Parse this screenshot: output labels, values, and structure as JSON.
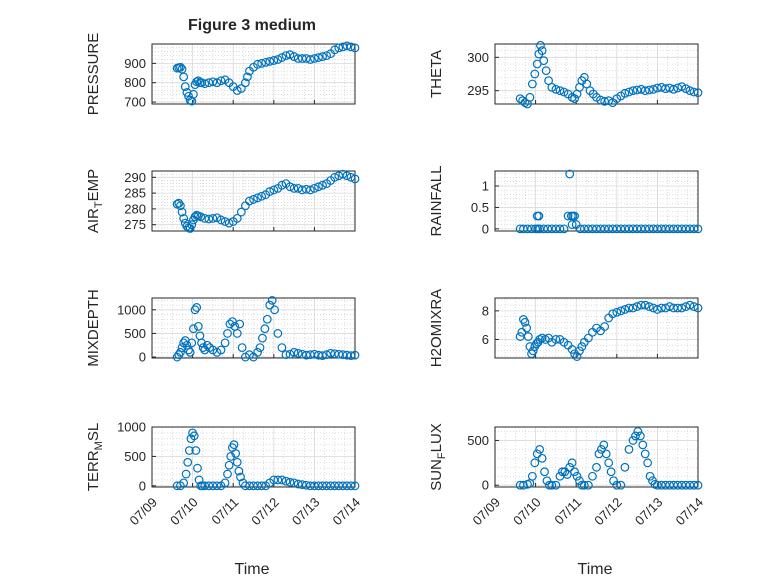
{
  "figure": {
    "title": "Figure 3 medium",
    "xlabel": "Time",
    "x_tick_labels": [
      "07/09",
      "07/10",
      "07/11",
      "07/12",
      "07/13",
      "07/14"
    ],
    "marker_color": "#0072bd"
  },
  "chart_data": [
    {
      "type": "scatter",
      "id": "pressure",
      "ylabel_main": "PRESSURE",
      "ylabel_sub": "",
      "xlim": [
        0,
        5
      ],
      "ylim": [
        690,
        1000
      ],
      "yticks": [
        700,
        800,
        900
      ],
      "ytick_labels": [
        "700",
        "800",
        "900"
      ],
      "grid": true,
      "minor_grid": true,
      "x": [
        0.62,
        0.66,
        0.7,
        0.74,
        0.78,
        0.82,
        0.86,
        0.9,
        0.94,
        0.98,
        1.02,
        1.06,
        1.1,
        1.14,
        1.18,
        1.22,
        1.3,
        1.4,
        1.5,
        1.6,
        1.7,
        1.8,
        1.9,
        2.0,
        2.1,
        2.2,
        2.3,
        2.35,
        2.4,
        2.5,
        2.6,
        2.7,
        2.8,
        2.9,
        3.0,
        3.1,
        3.2,
        3.3,
        3.4,
        3.5,
        3.6,
        3.7,
        3.8,
        3.9,
        4.0,
        4.1,
        4.2,
        4.3,
        4.4,
        4.5,
        4.6,
        4.7,
        4.8,
        4.9,
        5.0
      ],
      "y": [
        875,
        878,
        880,
        870,
        830,
        780,
        750,
        730,
        710,
        705,
        740,
        790,
        805,
        810,
        800,
        800,
        795,
        800,
        805,
        800,
        810,
        815,
        800,
        780,
        760,
        770,
        800,
        830,
        860,
        880,
        895,
        900,
        905,
        910,
        915,
        920,
        930,
        940,
        945,
        935,
        925,
        925,
        925,
        920,
        925,
        930,
        935,
        940,
        950,
        970,
        980,
        985,
        990,
        985,
        980
      ]
    },
    {
      "type": "scatter",
      "id": "theta",
      "ylabel_main": "THETA",
      "ylabel_sub": "",
      "xlim": [
        0,
        5
      ],
      "ylim": [
        293,
        302
      ],
      "yticks": [
        295,
        300
      ],
      "ytick_labels": [
        "295",
        "300"
      ],
      "grid": true,
      "minor_grid": true,
      "x": [
        0.62,
        0.68,
        0.74,
        0.8,
        0.86,
        0.92,
        0.98,
        1.04,
        1.08,
        1.12,
        1.16,
        1.2,
        1.26,
        1.32,
        1.4,
        1.5,
        1.6,
        1.7,
        1.8,
        1.9,
        1.96,
        2.02,
        2.08,
        2.14,
        2.2,
        2.26,
        2.34,
        2.42,
        2.5,
        2.6,
        2.7,
        2.8,
        2.9,
        3.0,
        3.1,
        3.2,
        3.3,
        3.4,
        3.5,
        3.6,
        3.7,
        3.8,
        3.9,
        4.0,
        4.1,
        4.2,
        4.3,
        4.4,
        4.5,
        4.6,
        4.7,
        4.8,
        4.9,
        5.0
      ],
      "y": [
        293.8,
        293.5,
        293.2,
        293.0,
        294.0,
        296.0,
        297.5,
        299.0,
        300.5,
        301.8,
        301.0,
        299.5,
        298.0,
        296.5,
        295.5,
        295.2,
        295.0,
        294.8,
        294.5,
        294.0,
        293.8,
        294.5,
        295.5,
        296.5,
        297.0,
        296.0,
        295.0,
        294.5,
        294.0,
        293.6,
        293.4,
        293.5,
        293.2,
        293.8,
        294.2,
        294.6,
        294.8,
        295.0,
        295.1,
        295.2,
        295.0,
        295.1,
        295.2,
        295.4,
        295.5,
        295.3,
        295.4,
        295.2,
        295.4,
        295.6,
        295.3,
        295.0,
        294.8,
        294.7
      ]
    },
    {
      "type": "scatter",
      "id": "air-temp",
      "ylabel_main": "AIR",
      "ylabel_sub": "T",
      "ylabel_tail": "EMP",
      "xlim": [
        0,
        5
      ],
      "ylim": [
        273,
        292
      ],
      "yticks": [
        275,
        280,
        285,
        290
      ],
      "ytick_labels": [
        "275",
        "280",
        "285",
        "290"
      ],
      "grid": true,
      "minor_grid": true,
      "x": [
        0.62,
        0.66,
        0.7,
        0.74,
        0.78,
        0.82,
        0.86,
        0.9,
        0.94,
        0.98,
        1.02,
        1.06,
        1.1,
        1.14,
        1.2,
        1.3,
        1.4,
        1.5,
        1.6,
        1.7,
        1.8,
        1.9,
        2.0,
        2.1,
        2.2,
        2.3,
        2.4,
        2.5,
        2.6,
        2.7,
        2.8,
        2.9,
        3.0,
        3.1,
        3.2,
        3.3,
        3.4,
        3.5,
        3.6,
        3.7,
        3.8,
        3.9,
        4.0,
        4.1,
        4.2,
        4.3,
        4.4,
        4.5,
        4.6,
        4.7,
        4.8,
        4.9,
        5.0
      ],
      "y": [
        281.5,
        281.8,
        281.0,
        279.0,
        277.0,
        275.5,
        274.5,
        274.0,
        273.8,
        275.0,
        276.5,
        277.5,
        278.0,
        277.8,
        277.5,
        277.0,
        276.8,
        277.0,
        277.2,
        276.5,
        276.0,
        275.5,
        276.0,
        277.0,
        279.0,
        281.0,
        282.5,
        283.0,
        283.5,
        284.0,
        284.5,
        285.5,
        286.0,
        286.5,
        287.5,
        288.0,
        287.0,
        286.5,
        286.5,
        286.0,
        286.2,
        286.0,
        286.5,
        287.0,
        287.5,
        288.0,
        289.0,
        290.0,
        290.5,
        291.0,
        290.5,
        290.0,
        289.5
      ]
    },
    {
      "type": "scatter",
      "id": "rainfall",
      "ylabel_main": "RAINFALL",
      "ylabel_sub": "",
      "xlim": [
        0,
        5
      ],
      "ylim": [
        -0.05,
        1.35
      ],
      "yticks": [
        0,
        0.5,
        1
      ],
      "ytick_labels": [
        "0",
        "0.5",
        "1"
      ],
      "grid": true,
      "minor_grid": true,
      "x": [
        0.62,
        0.7,
        0.8,
        0.9,
        1.0,
        1.05,
        1.1,
        1.2,
        1.3,
        1.4,
        1.5,
        1.6,
        1.7,
        1.8,
        1.84,
        1.88,
        1.92,
        1.96,
        2.0,
        2.1,
        2.2,
        2.3,
        2.4,
        2.5,
        2.6,
        2.7,
        2.8,
        2.9,
        3.0,
        3.1,
        3.2,
        3.3,
        3.4,
        3.5,
        3.6,
        3.7,
        3.8,
        3.9,
        4.0,
        4.1,
        4.2,
        4.3,
        4.4,
        4.5,
        4.6,
        4.7,
        4.8,
        4.9,
        5.0,
        1.04,
        1.08,
        1.9
      ],
      "y": [
        0,
        0,
        0,
        0,
        0,
        0,
        0,
        0,
        0,
        0,
        0,
        0,
        0,
        0.3,
        1.28,
        0.3,
        0.3,
        0.3,
        0.1,
        0,
        0,
        0,
        0,
        0,
        0,
        0,
        0,
        0,
        0,
        0,
        0,
        0,
        0,
        0,
        0,
        0,
        0,
        0,
        0,
        0,
        0,
        0,
        0,
        0,
        0,
        0,
        0,
        0,
        0,
        0.3,
        0.3,
        0.1
      ]
    },
    {
      "type": "scatter",
      "id": "mixdepth",
      "ylabel_main": "MIXDEPTH",
      "ylabel_sub": "",
      "xlim": [
        0,
        5
      ],
      "ylim": [
        -20,
        1250
      ],
      "yticks": [
        0,
        500,
        1000
      ],
      "ytick_labels": [
        "0",
        "500",
        "1000"
      ],
      "grid": true,
      "minor_grid": true,
      "x": [
        0.62,
        0.66,
        0.7,
        0.74,
        0.78,
        0.82,
        0.86,
        0.9,
        0.94,
        0.98,
        1.02,
        1.06,
        1.1,
        1.14,
        1.18,
        1.22,
        1.26,
        1.3,
        1.36,
        1.42,
        1.5,
        1.6,
        1.7,
        1.8,
        1.86,
        1.92,
        1.98,
        2.04,
        2.1,
        2.16,
        2.22,
        2.3,
        2.4,
        2.5,
        2.6,
        2.66,
        2.72,
        2.78,
        2.84,
        2.9,
        2.96,
        3.02,
        3.1,
        3.2,
        3.3,
        3.4,
        3.5,
        3.6,
        3.7,
        3.8,
        3.9,
        4.0,
        4.1,
        4.2,
        4.3,
        4.4,
        4.5,
        4.6,
        4.7,
        4.8,
        4.9,
        5.0
      ],
      "y": [
        0,
        50,
        100,
        200,
        300,
        350,
        250,
        150,
        100,
        300,
        600,
        1000,
        1050,
        650,
        450,
        300,
        200,
        150,
        250,
        200,
        150,
        100,
        150,
        300,
        500,
        700,
        750,
        650,
        500,
        700,
        200,
        0,
        50,
        0,
        100,
        200,
        400,
        600,
        800,
        1100,
        1200,
        1000,
        500,
        200,
        50,
        60,
        100,
        80,
        60,
        40,
        50,
        60,
        40,
        30,
        50,
        80,
        70,
        60,
        50,
        40,
        30,
        40
      ]
    },
    {
      "type": "scatter",
      "id": "h2omixra",
      "ylabel_main": "H2OMIXRA",
      "ylabel_sub": "",
      "xlim": [
        0,
        5
      ],
      "ylim": [
        4.7,
        8.9
      ],
      "yticks": [
        6,
        8
      ],
      "ytick_labels": [
        "6",
        "8"
      ],
      "grid": true,
      "minor_grid": true,
      "x": [
        0.62,
        0.66,
        0.7,
        0.74,
        0.78,
        0.82,
        0.86,
        0.9,
        0.94,
        0.98,
        1.02,
        1.06,
        1.1,
        1.16,
        1.24,
        1.32,
        1.4,
        1.5,
        1.6,
        1.7,
        1.8,
        1.9,
        1.96,
        2.02,
        2.08,
        2.14,
        2.2,
        2.3,
        2.4,
        2.5,
        2.6,
        2.7,
        2.8,
        2.9,
        3.0,
        3.1,
        3.2,
        3.3,
        3.4,
        3.5,
        3.6,
        3.7,
        3.8,
        3.9,
        4.0,
        4.1,
        4.2,
        4.3,
        4.4,
        4.5,
        4.6,
        4.7,
        4.8,
        4.9,
        5.0
      ],
      "y": [
        6.2,
        6.5,
        7.4,
        7.2,
        6.8,
        6.2,
        5.5,
        5.0,
        5.2,
        5.5,
        5.7,
        5.8,
        6.0,
        6.1,
        6.0,
        6.1,
        5.8,
        6.0,
        6.0,
        5.8,
        5.6,
        5.3,
        5.0,
        4.8,
        5.2,
        5.5,
        5.8,
        6.1,
        6.5,
        6.8,
        6.6,
        6.9,
        7.5,
        7.8,
        7.9,
        8.0,
        8.1,
        8.2,
        8.2,
        8.3,
        8.4,
        8.4,
        8.3,
        8.2,
        8.1,
        8.2,
        8.2,
        8.3,
        8.2,
        8.2,
        8.2,
        8.3,
        8.4,
        8.3,
        8.2
      ]
    },
    {
      "type": "scatter",
      "id": "terr-msl",
      "ylabel_main": "TERR",
      "ylabel_sub": "M",
      "ylabel_tail": "SL",
      "xlim": [
        0,
        5
      ],
      "ylim": [
        -20,
        1000
      ],
      "yticks": [
        0,
        500,
        1000
      ],
      "ytick_labels": [
        "0",
        "500",
        "1000"
      ],
      "grid": true,
      "minor_grid": true,
      "x": [
        0.62,
        0.7,
        0.78,
        0.84,
        0.88,
        0.92,
        0.96,
        1.0,
        1.04,
        1.08,
        1.12,
        1.16,
        1.2,
        1.24,
        1.3,
        1.4,
        1.5,
        1.6,
        1.7,
        1.8,
        1.86,
        1.9,
        1.94,
        1.98,
        2.02,
        2.06,
        2.1,
        2.14,
        2.18,
        2.24,
        2.3,
        2.4,
        2.5,
        2.6,
        2.7,
        2.8,
        2.9,
        3.0,
        3.1,
        3.2,
        3.3,
        3.4,
        3.5,
        3.6,
        3.7,
        3.8,
        3.9,
        4.0,
        4.1,
        4.2,
        4.3,
        4.4,
        4.5,
        4.6,
        4.7,
        4.8,
        4.9,
        5.0
      ],
      "y": [
        0,
        0,
        50,
        200,
        400,
        600,
        800,
        900,
        850,
        600,
        300,
        100,
        0,
        0,
        0,
        0,
        0,
        0,
        0,
        50,
        200,
        350,
        500,
        650,
        700,
        550,
        400,
        250,
        150,
        50,
        0,
        0,
        0,
        0,
        0,
        0,
        50,
        100,
        100,
        100,
        80,
        60,
        50,
        30,
        20,
        10,
        0,
        0,
        0,
        0,
        0,
        0,
        0,
        0,
        0,
        0,
        0,
        0
      ]
    },
    {
      "type": "scatter",
      "id": "sun-flux",
      "ylabel_main": "SUN",
      "ylabel_sub": "F",
      "ylabel_tail": "LUX",
      "xlim": [
        0,
        5
      ],
      "ylim": [
        -20,
        650
      ],
      "yticks": [
        0,
        500
      ],
      "ytick_labels": [
        "0",
        "500"
      ],
      "grid": true,
      "minor_grid": true,
      "x": [
        0.62,
        0.7,
        0.8,
        0.86,
        0.92,
        0.98,
        1.04,
        1.1,
        1.16,
        1.22,
        1.28,
        1.34,
        1.4,
        1.5,
        1.6,
        1.66,
        1.72,
        1.78,
        1.84,
        1.9,
        1.96,
        2.02,
        2.08,
        2.14,
        2.2,
        2.3,
        2.4,
        2.5,
        2.56,
        2.62,
        2.68,
        2.74,
        2.8,
        2.86,
        2.92,
        3.0,
        3.1,
        3.2,
        3.3,
        3.4,
        3.46,
        3.52,
        3.58,
        3.64,
        3.7,
        3.76,
        3.82,
        3.88,
        3.94,
        4.0,
        4.1,
        4.2,
        4.3,
        4.4,
        4.5,
        4.6,
        4.7,
        4.8,
        4.9,
        5.0
      ],
      "y": [
        0,
        0,
        10,
        20,
        100,
        250,
        350,
        400,
        300,
        150,
        50,
        0,
        0,
        0,
        100,
        150,
        150,
        120,
        200,
        250,
        150,
        100,
        50,
        0,
        0,
        0,
        100,
        200,
        350,
        400,
        450,
        350,
        250,
        150,
        50,
        0,
        0,
        200,
        400,
        500,
        550,
        600,
        550,
        450,
        350,
        250,
        100,
        50,
        10,
        0,
        0,
        0,
        0,
        0,
        0,
        0,
        0,
        0,
        0,
        0
      ]
    }
  ]
}
